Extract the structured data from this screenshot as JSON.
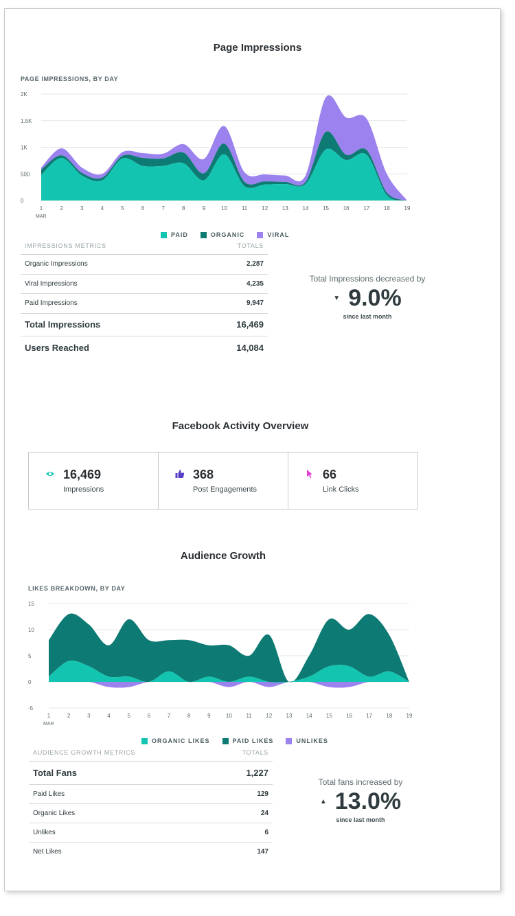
{
  "impressions_section": {
    "title": "Page Impressions",
    "chart_label": "PAGE IMPRESSIONS, BY DAY",
    "x_sub_label": "MAR",
    "legend": [
      "PAID",
      "ORGANIC",
      "VIRAL"
    ],
    "table": {
      "header_left": "IMPRESSIONS METRICS",
      "header_right": "TOTALS",
      "rows": [
        {
          "label": "Organic Impressions",
          "value": "2,287"
        },
        {
          "label": "Viral Impressions",
          "value": "4,235"
        },
        {
          "label": "Paid Impressions",
          "value": "9,947"
        },
        {
          "label": "Total Impressions",
          "value": "16,469"
        },
        {
          "label": "Users Reached",
          "value": "14,084"
        }
      ]
    },
    "summary": {
      "lead": "Total Impressions decreased by",
      "value": "9.0%",
      "sub": "since last month"
    }
  },
  "activity_section": {
    "title": "Facebook Activity Overview",
    "cards": [
      {
        "value": "16,469",
        "label": "Impressions",
        "icon": "eye-icon"
      },
      {
        "value": "368",
        "label": "Post Engagements",
        "icon": "thumbs-up-icon"
      },
      {
        "value": "66",
        "label": "Link Clicks",
        "icon": "cursor-icon"
      }
    ]
  },
  "audience_section": {
    "title": "Audience Growth",
    "chart_label": "LIKES BREAKDOWN, BY DAY",
    "x_sub_label": "MAR",
    "legend": [
      "ORGANIC LIKES",
      "PAID LIKES",
      "UNLIKES"
    ],
    "table": {
      "header_left": "AUDIENCE GROWTH METRICS",
      "header_right": "TOTALS",
      "rows": [
        {
          "label": "Total Fans",
          "value": "1,227"
        },
        {
          "label": "Paid Likes",
          "value": "129"
        },
        {
          "label": "Organic Likes",
          "value": "24"
        },
        {
          "label": "Unlikes",
          "value": "6"
        },
        {
          "label": "Net Likes",
          "value": "147"
        }
      ]
    },
    "summary": {
      "lead": "Total fans increased by",
      "value": "13.0%",
      "sub": "since last month"
    }
  },
  "colors": {
    "teal": "#13c4b0",
    "dark_teal": "#0e7a74",
    "purple": "#9b82ee",
    "pink": "#e23fd2"
  },
  "chart_data": [
    {
      "type": "area",
      "stacked": true,
      "title": "Page Impressions",
      "xlabel": "MAR",
      "ylabel": "",
      "x": [
        1,
        2,
        3,
        4,
        5,
        6,
        7,
        8,
        9,
        10,
        11,
        12,
        13,
        14,
        15,
        16,
        17,
        18,
        19
      ],
      "ylim": [
        0,
        2000
      ],
      "yticks": [
        "0",
        "500",
        "1K",
        "1.5K",
        "2K"
      ],
      "ytick_values": [
        0,
        500,
        1000,
        1500,
        2000
      ],
      "series": [
        {
          "name": "PAID",
          "color": "#13c4b0",
          "values": [
            480,
            800,
            470,
            380,
            790,
            650,
            650,
            700,
            380,
            870,
            270,
            300,
            310,
            310,
            960,
            760,
            860,
            100,
            0
          ]
        },
        {
          "name": "ORGANIC",
          "color": "#0e7a74",
          "values": [
            100,
            50,
            50,
            50,
            50,
            150,
            140,
            200,
            130,
            200,
            80,
            60,
            40,
            40,
            330,
            100,
            90,
            50,
            0
          ]
        },
        {
          "name": "VIRAL",
          "color": "#9b82ee",
          "values": [
            40,
            130,
            100,
            70,
            70,
            90,
            90,
            160,
            270,
            330,
            180,
            130,
            120,
            120,
            650,
            700,
            590,
            350,
            0
          ]
        }
      ]
    },
    {
      "type": "area",
      "stacked": true,
      "title": "Audience Growth",
      "xlabel": "MAR",
      "ylabel": "",
      "x": [
        1,
        2,
        3,
        4,
        5,
        6,
        7,
        8,
        9,
        10,
        11,
        12,
        13,
        14,
        15,
        16,
        17,
        18,
        19
      ],
      "ylim": [
        -5,
        15
      ],
      "yticks": [
        "-5",
        "0",
        "5",
        "10",
        "15"
      ],
      "ytick_values": [
        -5,
        0,
        5,
        10,
        15
      ],
      "series": [
        {
          "name": "ORGANIC LIKES",
          "color": "#13c4b0",
          "values": [
            1,
            4,
            3,
            1,
            1,
            0,
            2,
            0,
            1,
            0,
            1,
            0,
            0,
            1,
            3,
            3,
            1,
            2,
            0
          ]
        },
        {
          "name": "PAID LIKES",
          "color": "#0e7a74",
          "values": [
            7,
            9,
            8,
            6,
            11,
            8,
            6,
            8,
            6,
            7,
            4,
            9,
            0,
            4,
            9,
            7,
            12,
            7,
            0
          ]
        },
        {
          "name": "UNLIKES",
          "color": "#9b82ee",
          "values": [
            0,
            0,
            0,
            -1,
            -1,
            0,
            0,
            0,
            0,
            -1,
            0,
            -1,
            0,
            0,
            -1,
            -1,
            0,
            0,
            0
          ]
        }
      ]
    }
  ]
}
